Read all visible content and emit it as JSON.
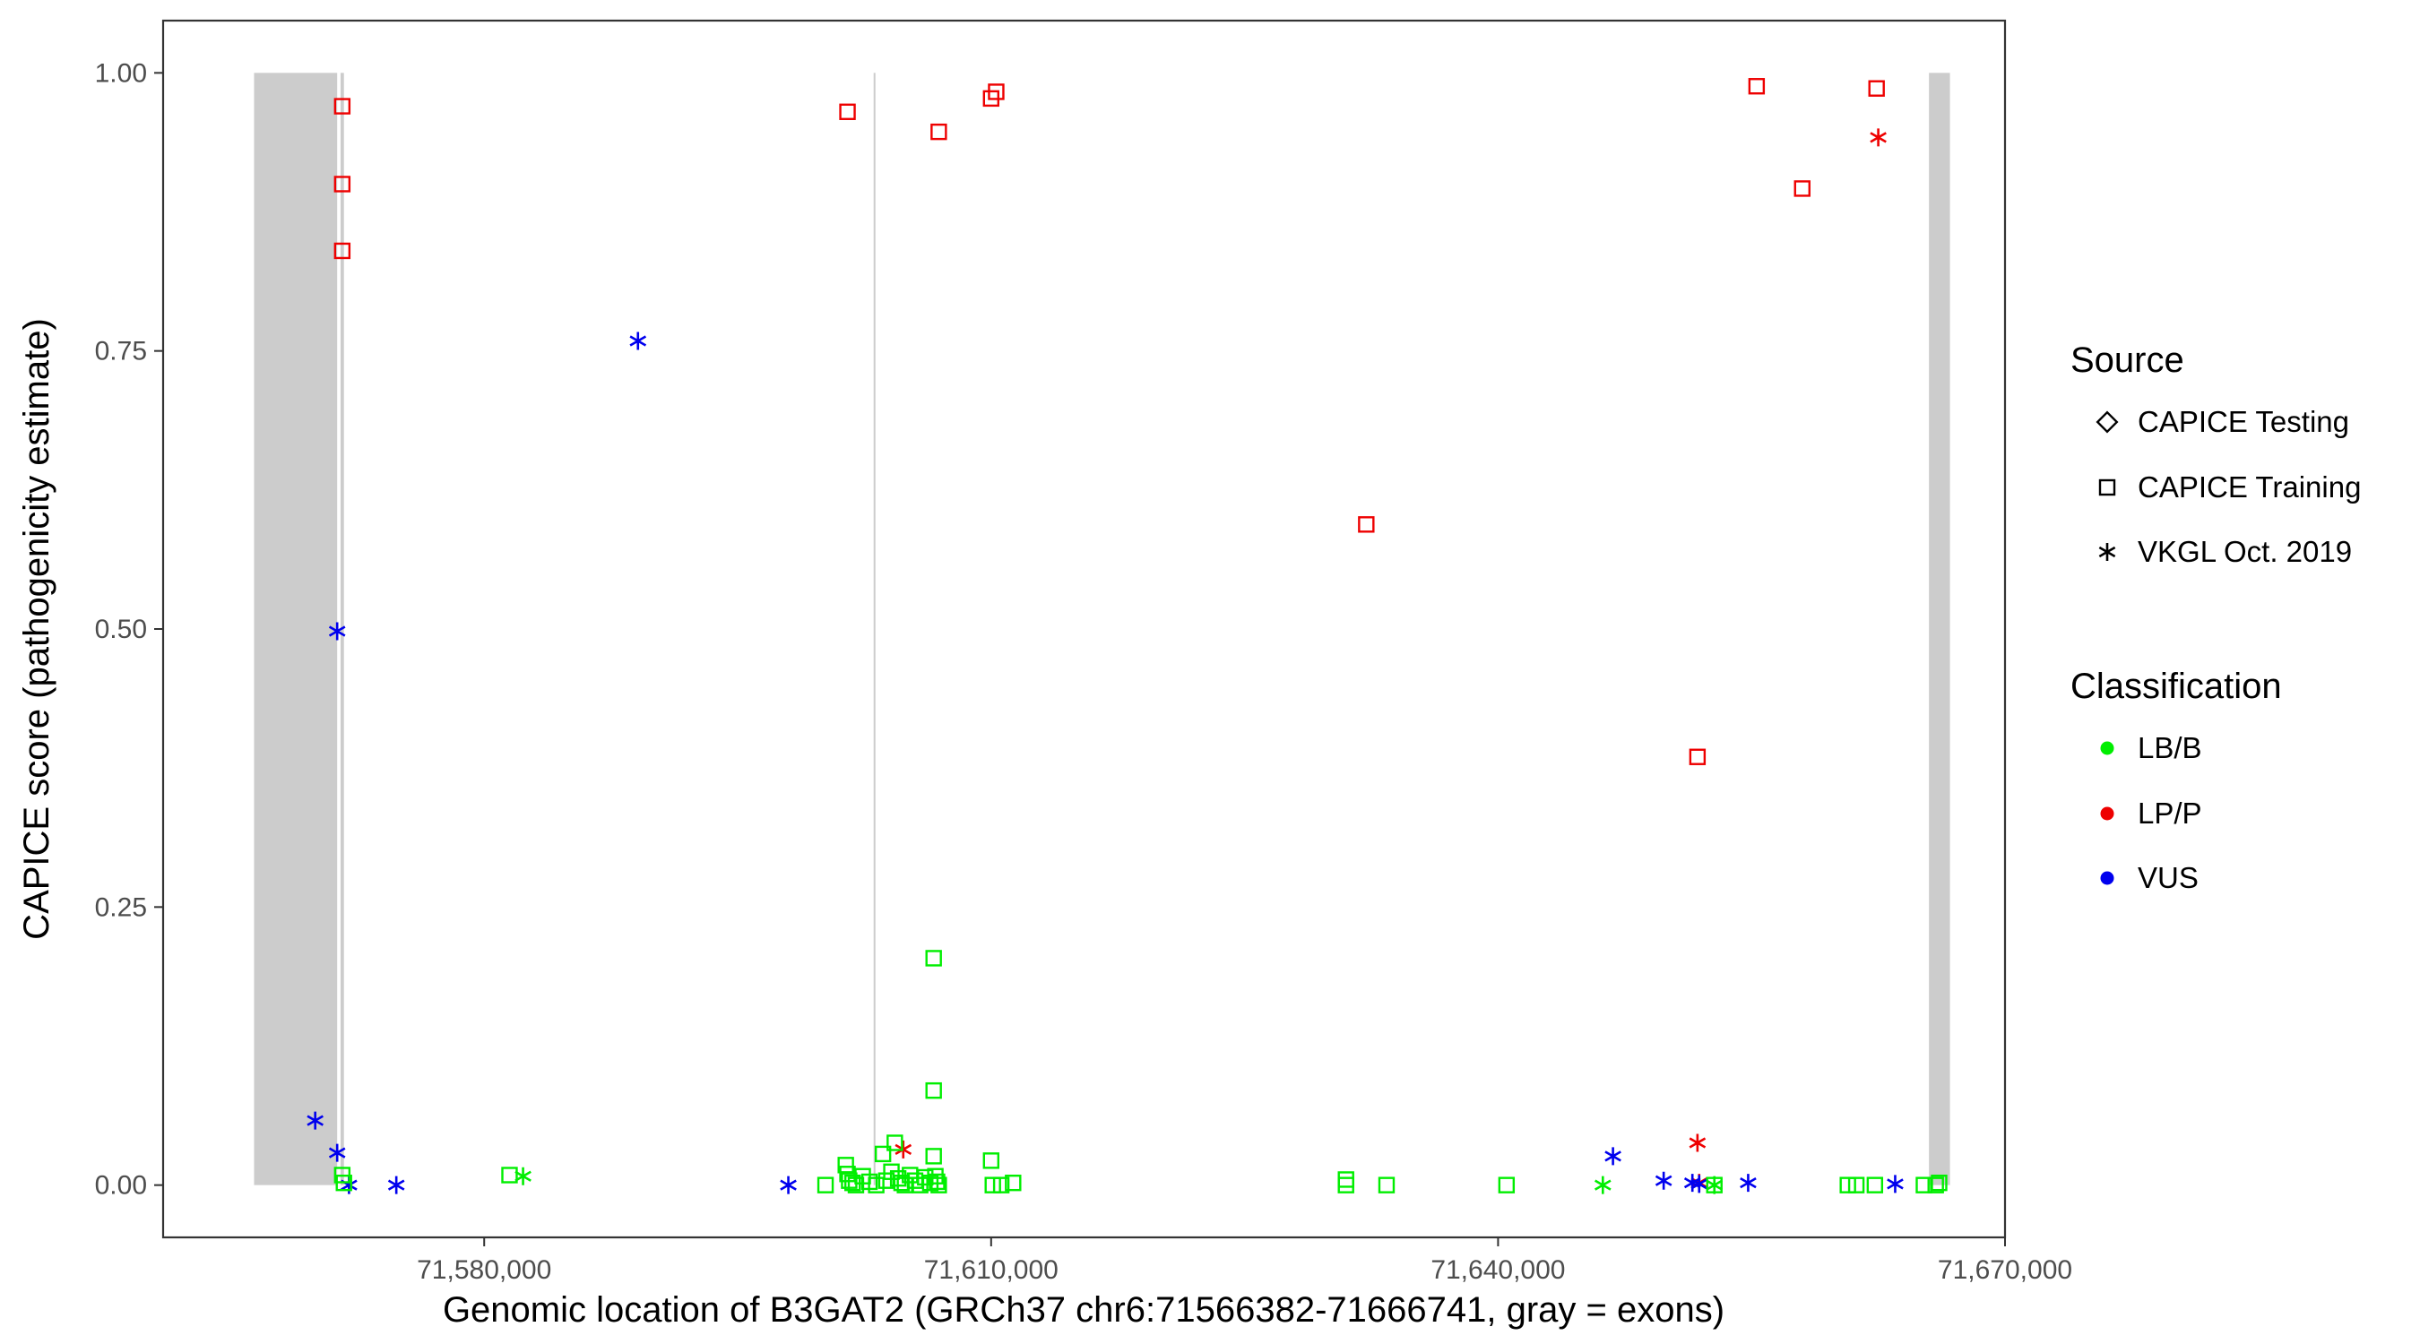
{
  "chart_data": {
    "type": "scatter",
    "title": "",
    "xlabel": "Genomic location of B3GAT2 (GRCh37 chr6:71566382-71666741, gray = exons)",
    "ylabel": "CAPICE score (pathogenicity estimate)",
    "xlim": [
      71561000,
      71670000
    ],
    "ylim": [
      -0.047,
      1.047
    ],
    "x_ticks": [
      71580000,
      71610000,
      71640000,
      71670000
    ],
    "x_tick_labels": [
      "71,580,000",
      "71,610,000",
      "71,640,000",
      "71,670,000"
    ],
    "y_ticks": [
      0,
      0.25,
      0.5,
      0.75,
      1
    ],
    "y_tick_labels": [
      "0.00",
      "0.25",
      "0.50",
      "0.75",
      "1.00"
    ],
    "grid": false,
    "legend_position": "right",
    "exons": [
      [
        71566382,
        71571300
      ],
      [
        71571500,
        71571700
      ],
      [
        71603050,
        71603150
      ],
      [
        71665500,
        71666741
      ]
    ],
    "exon_color": "#cccccc",
    "legend": {
      "source_title": "Source",
      "source_items": [
        {
          "label": "CAPICE Testing",
          "shape": "diamond"
        },
        {
          "label": "CAPICE Training",
          "shape": "square"
        },
        {
          "label": "VKGL Oct. 2019",
          "shape": "asterisk"
        }
      ],
      "class_title": "Classification",
      "class_items": [
        {
          "label": "LB/B",
          "color": "#00ee00"
        },
        {
          "label": "LP/P",
          "color": "#ee0000"
        },
        {
          "label": "VUS",
          "color": "#0000ee"
        }
      ]
    },
    "series": [
      {
        "source": "CAPICE Training",
        "class": "LP/P",
        "color": "#ee0000",
        "shape": "square",
        "points": [
          [
            71571600,
            0.97
          ],
          [
            71571600,
            0.9
          ],
          [
            71571600,
            0.84
          ],
          [
            71601500,
            0.965
          ],
          [
            71606900,
            0.947
          ],
          [
            71610000,
            0.977
          ],
          [
            71610300,
            0.983
          ],
          [
            71632200,
            0.594
          ],
          [
            71651800,
            0.385
          ],
          [
            71655300,
            0.988
          ],
          [
            71658000,
            0.896
          ],
          [
            71662400,
            0.986
          ]
        ]
      },
      {
        "source": "VKGL Oct. 2019",
        "class": "LP/P",
        "color": "#ee0000",
        "shape": "asterisk",
        "points": [
          [
            71604800,
            0.032
          ],
          [
            71651800,
            0.038
          ],
          [
            71651900,
            0.002
          ],
          [
            71662500,
            0.942
          ]
        ]
      },
      {
        "source": "VKGL Oct. 2019",
        "class": "VUS",
        "color": "#0000ee",
        "shape": "asterisk",
        "points": [
          [
            71570000,
            0.058
          ],
          [
            71571300,
            0.498
          ],
          [
            71571300,
            0.029
          ],
          [
            71572000,
            0.0
          ],
          [
            71574800,
            0.0
          ],
          [
            71589100,
            0.759
          ],
          [
            71598000,
            0.0
          ],
          [
            71646800,
            0.026
          ],
          [
            71649800,
            0.004
          ],
          [
            71651500,
            0.002
          ],
          [
            71651900,
            0.001
          ],
          [
            71654800,
            0.002
          ],
          [
            71663500,
            0.001
          ]
        ]
      },
      {
        "source": "VKGL Oct. 2019",
        "class": "LB/B",
        "color": "#00ee00",
        "shape": "asterisk",
        "points": [
          [
            71582300,
            0.008
          ],
          [
            71646200,
            0.0
          ],
          [
            71652800,
            0.0
          ]
        ]
      },
      {
        "source": "CAPICE Training",
        "class": "LB/B",
        "color": "#00ee00",
        "shape": "square",
        "points": [
          [
            71571600,
            0.009
          ],
          [
            71571700,
            0.002
          ],
          [
            71581500,
            0.009
          ],
          [
            71600200,
            0.0
          ],
          [
            71601400,
            0.018
          ],
          [
            71601500,
            0.01
          ],
          [
            71601600,
            0.004
          ],
          [
            71601800,
            0.002
          ],
          [
            71602000,
            0.0
          ],
          [
            71602400,
            0.008
          ],
          [
            71602800,
            0.003
          ],
          [
            71603200,
            0.0
          ],
          [
            71603600,
            0.028
          ],
          [
            71603800,
            0.004
          ],
          [
            71604100,
            0.012
          ],
          [
            71604300,
            0.038
          ],
          [
            71604500,
            0.006
          ],
          [
            71604700,
            0.002
          ],
          [
            71604900,
            0.0
          ],
          [
            71605200,
            0.009
          ],
          [
            71605500,
            0.004
          ],
          [
            71605800,
            0.0
          ],
          [
            71606100,
            0.007
          ],
          [
            71606400,
            0.002
          ],
          [
            71606600,
            0.204
          ],
          [
            71606600,
            0.085
          ],
          [
            71606600,
            0.026
          ],
          [
            71606700,
            0.008
          ],
          [
            71606800,
            0.003
          ],
          [
            71606900,
            0.0
          ],
          [
            71610000,
            0.022
          ],
          [
            71610100,
            0.0
          ],
          [
            71610600,
            0.0
          ],
          [
            71611300,
            0.002
          ],
          [
            71631000,
            0.005
          ],
          [
            71631000,
            0.0
          ],
          [
            71633400,
            0.0
          ],
          [
            71640500,
            0.0
          ],
          [
            71652800,
            0.0
          ],
          [
            71660700,
            0.0
          ],
          [
            71661200,
            0.0
          ],
          [
            71662300,
            0.0
          ],
          [
            71665200,
            0.0
          ],
          [
            71665900,
            0.0
          ],
          [
            71666100,
            0.002
          ]
        ]
      }
    ]
  }
}
